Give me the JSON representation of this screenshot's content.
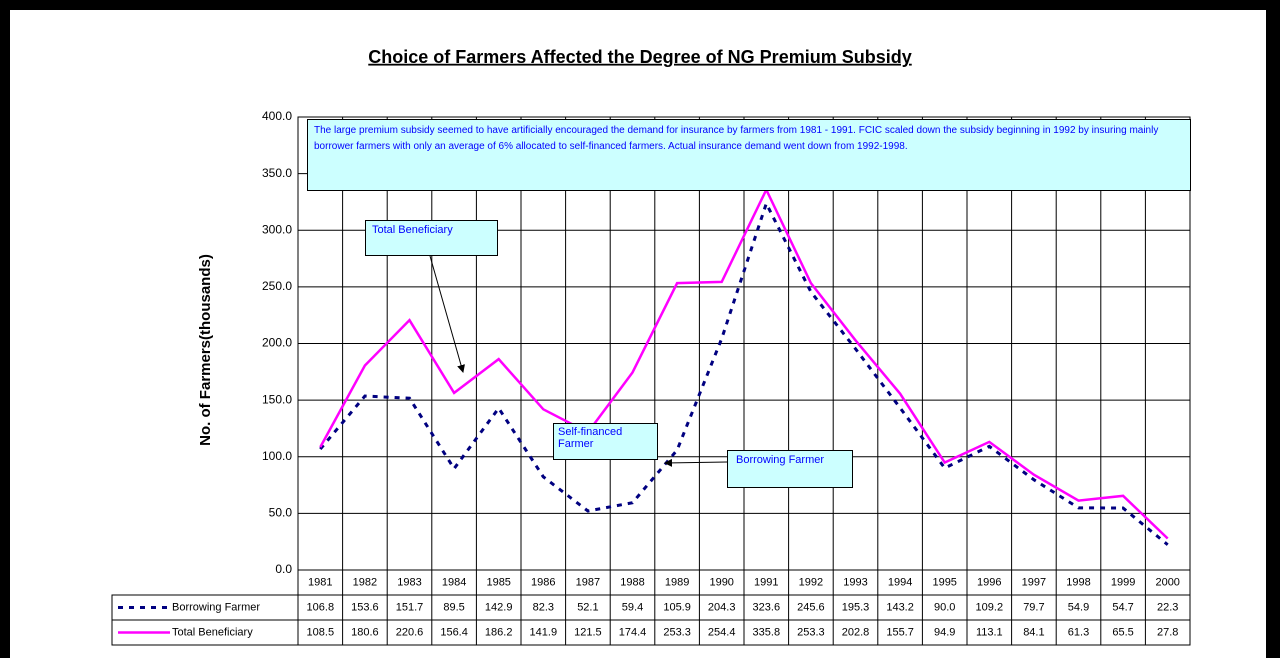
{
  "chart_data": {
    "type": "line",
    "title": "Choice of Farmers Affected the Degree of NG Premium Subsidy",
    "y_label": "No. of Farmers(thousands)",
    "categories": [
      "1981",
      "1982",
      "1983",
      "1984",
      "1985",
      "1986",
      "1987",
      "1988",
      "1989",
      "1990",
      "1991",
      "1992",
      "1993",
      "1994",
      "1995",
      "1996",
      "1997",
      "1998",
      "1999",
      "2000"
    ],
    "series": [
      {
        "name": "Borrowing Farmer",
        "color": "#000080",
        "dashed": true,
        "values": [
          106.8,
          153.6,
          151.7,
          89.5,
          142.9,
          82.3,
          52.1,
          59.4,
          105.9,
          204.3,
          323.6,
          245.6,
          195.3,
          143.2,
          90,
          109.2,
          79.7,
          54.9,
          54.7,
          22.3
        ],
        "value_labels": [
          "106.8",
          "153.6",
          "151.7",
          "89.5",
          "142.9",
          "82.3",
          "52.1",
          "59.4",
          "105.9",
          "204.3",
          "323.6",
          "245.6",
          "195.3",
          "143.2",
          "90.0",
          "109.2",
          "79.7",
          "54.9",
          "54.7",
          "22.3"
        ]
      },
      {
        "name": "Total Beneficiary",
        "color": "#ff00ff",
        "dashed": false,
        "values": [
          108.5,
          180.6,
          220.6,
          156.4,
          186.2,
          141.9,
          121.5,
          174.4,
          253.3,
          254.4,
          335.8,
          253.3,
          202.8,
          155.7,
          94.9,
          113.1,
          84.1,
          61.3,
          65.5,
          27.8
        ]
      }
    ],
    "ylim": [
      0,
      400
    ],
    "yticks": [
      {
        "value": 0,
        "label": "0.0"
      },
      {
        "value": 50,
        "label": "50.0"
      },
      {
        "value": 100,
        "label": "100.0"
      },
      {
        "value": 150,
        "label": "150.0"
      },
      {
        "value": 200,
        "label": "200.0"
      },
      {
        "value": 250,
        "label": "250.0"
      },
      {
        "value": 300,
        "label": "300.0"
      },
      {
        "value": 350,
        "label": "350.0"
      },
      {
        "value": 400,
        "label": "400.0"
      }
    ],
    "grid": true,
    "annotations": [
      "The large premium subsidy seemed to have artificially encouraged the demand for insurance by farmers from 1981 - 1991.  FCIC scaled down the subsidy beginning in 1992 by insuring mainly borrower farmers with only an average of 6% allocated to self-financed farmers.  Actual insurance demand went down from 1992-1998.",
      "Total Beneficiary",
      "Self-financed Farmer",
      "Borrowing Farmer"
    ]
  }
}
